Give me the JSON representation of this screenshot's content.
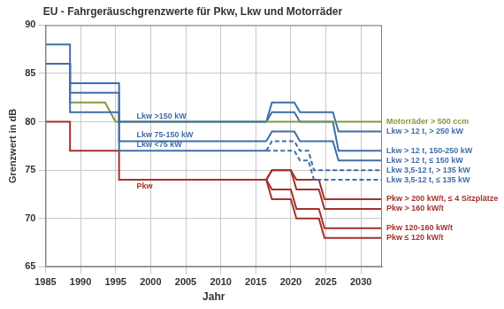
{
  "chart_data": {
    "type": "line",
    "title": "EU - Fahrgeräuschgrenzwerte für Pkw, Lkw und Motorräder",
    "x_label": "Jahr",
    "y_label": "Grenzwert in dB",
    "xlim": [
      1985,
      2033
    ],
    "xticks": [
      1985,
      1990,
      1995,
      2000,
      2005,
      2010,
      2015,
      2020,
      2025,
      2030
    ],
    "ylim": [
      65,
      90
    ],
    "yticks": [
      65,
      70,
      75,
      80,
      85,
      90
    ],
    "grid": true,
    "series": [
      {
        "name": "Lkw >150 kW",
        "color": "#3f6ea8",
        "line_style": "solid",
        "x": [
          1985,
          1988.5,
          1988.5,
          1995.5,
          1995.5,
          2016.5
        ],
        "values": [
          88,
          88,
          84,
          84,
          80,
          80
        ]
      },
      {
        "name": "Lkw 75-150 kW",
        "color": "#3f6ea8",
        "line_style": "solid",
        "x": [
          1985,
          1988.5,
          1988.5,
          1995.5,
          1995.5,
          2016.5
        ],
        "values": [
          86,
          86,
          83,
          83,
          78,
          78
        ]
      },
      {
        "name": "Lkw <75 kW",
        "color": "#3f6ea8",
        "line_style": "solid",
        "x": [
          1985,
          1988.5,
          1988.5,
          1995.5,
          1995.5,
          2016.5
        ],
        "values": [
          86,
          86,
          81,
          81,
          77,
          77
        ]
      },
      {
        "name": "Motorräder > 500 ccm",
        "color": "#7f9a3d",
        "line_style": "solid",
        "x": [
          1985,
          1988.5,
          1988.5,
          1993.5,
          1995,
          2033
        ],
        "values": [
          86,
          86,
          82,
          82,
          80,
          80
        ]
      },
      {
        "name": "Pkw",
        "color": "#a5312b",
        "line_style": "solid",
        "x": [
          1985,
          1988.5,
          1988.5,
          1995.5,
          1995.5,
          2016.5
        ],
        "values": [
          80,
          80,
          77,
          77,
          74,
          74
        ]
      },
      {
        "name": "Lkw > 12 t, > 250 kW",
        "color": "#3f6ea8",
        "line_style": "solid",
        "x": [
          2016.5,
          2017.3,
          2020.5,
          2021.3,
          2026,
          2026.8,
          2033
        ],
        "values": [
          80,
          82,
          82,
          81,
          81,
          79,
          79
        ]
      },
      {
        "name": "Lkw > 12 t, 150-250 kW",
        "color": "#3f6ea8",
        "line_style": "solid",
        "x": [
          2016.5,
          2017.3,
          2020.5,
          2021.3,
          2026,
          2026.8,
          2033
        ],
        "values": [
          80,
          81,
          81,
          80,
          80,
          77,
          77
        ]
      },
      {
        "name": "Lkw > 12 t, ≤ 150 kW",
        "color": "#3f6ea8",
        "line_style": "solid",
        "x": [
          2016.5,
          2017.3,
          2020.5,
          2021.3,
          2026,
          2026.8,
          2033
        ],
        "values": [
          78,
          79,
          79,
          78,
          78,
          76,
          76
        ]
      },
      {
        "name": "Lkw 3,5-12 t, > 135 kW",
        "color": "#3f6ea8",
        "line_style": "dashed",
        "x": [
          2016.5,
          2017.3,
          2020.5,
          2021.3,
          2022.5,
          2023.3,
          2033
        ],
        "values": [
          77,
          78,
          78,
          77,
          77,
          75,
          75
        ]
      },
      {
        "name": "Lkw 3,5-12 t, ≤ 135 kW",
        "color": "#3f6ea8",
        "line_style": "dashed",
        "x": [
          2016.5,
          2017.3,
          2020.5,
          2021.3,
          2022.5,
          2023.3,
          2033
        ],
        "values": [
          77,
          77,
          77,
          76,
          76,
          74,
          74
        ]
      },
      {
        "name": "Pkw > 200 kW/t, ≤ 4 Sitzplätze",
        "color": "#a5312b",
        "line_style": "solid",
        "x": [
          2016.5,
          2017.3,
          2020,
          2020.8,
          2024,
          2024.8,
          2033
        ],
        "values": [
          74,
          75,
          75,
          74,
          74,
          72,
          72
        ]
      },
      {
        "name": "Pkw > 160 kW/t",
        "color": "#a5312b",
        "line_style": "solid",
        "x": [
          2016.5,
          2017.3,
          2020,
          2020.8,
          2024,
          2024.8,
          2033
        ],
        "values": [
          74,
          75,
          75,
          73,
          73,
          71,
          71
        ]
      },
      {
        "name": "Pkw 120-160 kW/t",
        "color": "#a5312b",
        "line_style": "solid",
        "x": [
          2016.5,
          2017.3,
          2020,
          2020.8,
          2024,
          2024.8,
          2033
        ],
        "values": [
          74,
          73,
          73,
          71,
          71,
          69,
          69
        ]
      },
      {
        "name": "Pkw ≤ 120 kW/t",
        "color": "#a5312b",
        "line_style": "solid",
        "x": [
          2016.5,
          2017.3,
          2020,
          2020.8,
          2024,
          2024.8,
          2033
        ],
        "values": [
          74,
          72,
          72,
          70,
          70,
          68,
          68
        ]
      }
    ]
  }
}
